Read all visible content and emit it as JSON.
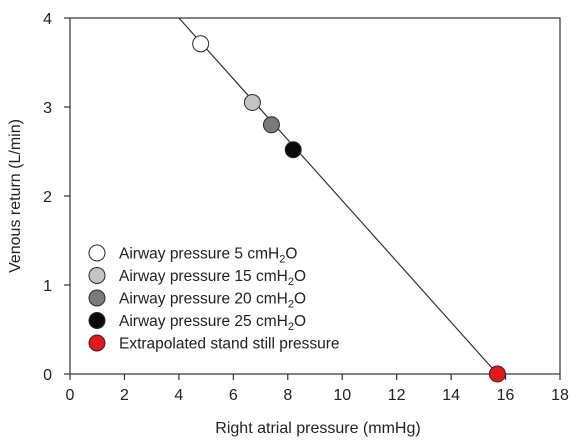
{
  "chart_data": {
    "type": "scatter",
    "xlabel": "Right atrial pressure (mmHg)",
    "ylabel": "Venous return (L/min)",
    "xlim": [
      0,
      18
    ],
    "ylim": [
      0,
      4
    ],
    "x_ticks": [
      "0",
      "2",
      "4",
      "6",
      "8",
      "10",
      "12",
      "14",
      "16",
      "18"
    ],
    "y_ticks": [
      "0",
      "1",
      "2",
      "3",
      "4"
    ],
    "grid": false,
    "legend_position": "bottom-left",
    "line": {
      "type": "linear fit",
      "x": [
        4.0,
        15.7
      ],
      "y": [
        4.0,
        0.0
      ],
      "color": "#333333"
    },
    "series": [
      {
        "name": "Airway pressure 5 cmH",
        "subscript": "2",
        "suffix": "O",
        "x": [
          4.8
        ],
        "y": [
          3.71
        ],
        "fill": "#ffffff"
      },
      {
        "name": "Airway pressure 15 cmH",
        "subscript": "2",
        "suffix": "O",
        "x": [
          6.7
        ],
        "y": [
          3.05
        ],
        "fill": "#c4c4c4"
      },
      {
        "name": "Airway pressure 20 cmH",
        "subscript": "2",
        "suffix": "O",
        "x": [
          7.4
        ],
        "y": [
          2.8
        ],
        "fill": "#7a7a7a"
      },
      {
        "name": "Airway pressure 25 cmH",
        "subscript": "2",
        "suffix": "O",
        "x": [
          8.2
        ],
        "y": [
          2.52
        ],
        "fill": "#0a0a0a"
      },
      {
        "name": "Extrapolated stand still pressure",
        "subscript": "",
        "suffix": "",
        "x": [
          15.7
        ],
        "y": [
          0.0
        ],
        "fill": "#e8161b"
      }
    ]
  }
}
